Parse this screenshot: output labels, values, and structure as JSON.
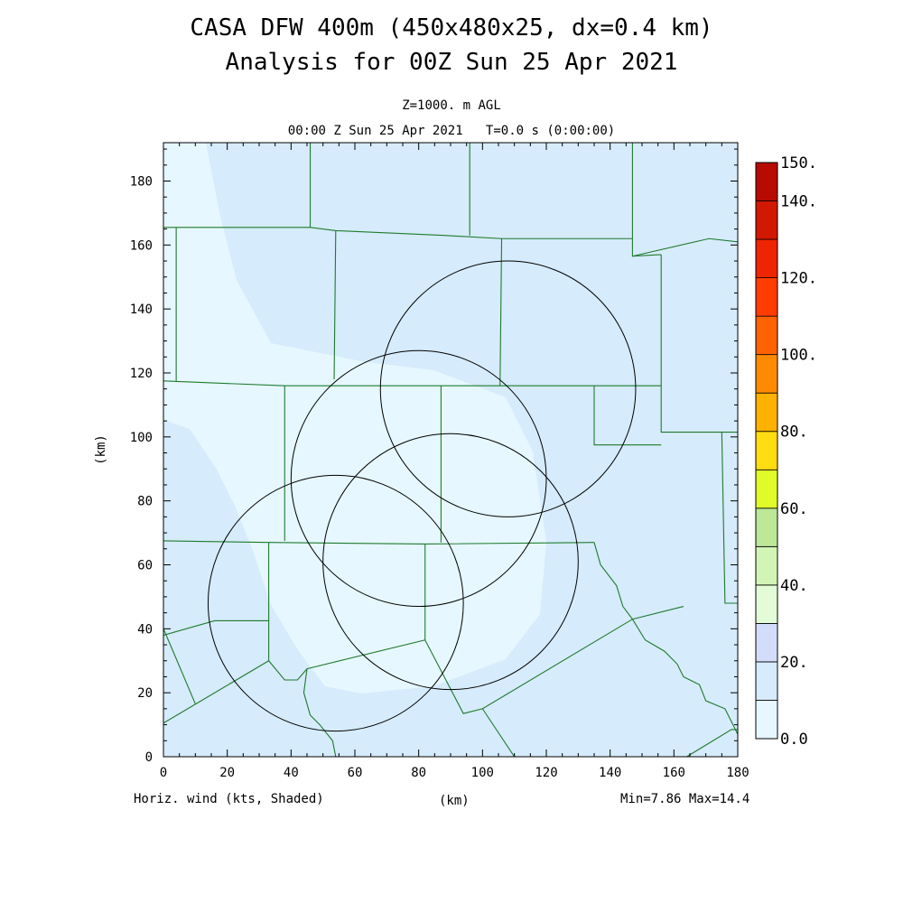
{
  "header": {
    "title1": "CASA DFW 400m (450x480x25, dx=0.4 km)",
    "title2": "Analysis for 00Z Sun 25 Apr 2021",
    "level": "Z=1000. m AGL",
    "time": "00:00 Z Sun 25 Apr 2021   T=0.0 s (0:00:00)"
  },
  "footer": {
    "variable": "Horiz. wind (kts, Shaded)",
    "xunit": "(km)",
    "minmax": "Min=7.86 Max=14.4"
  },
  "chart_data": {
    "type": "heatmap",
    "title": "CASA DFW 400m (450x480x25, dx=0.4 km)",
    "subtitle": "Analysis for 00Z Sun 25 Apr 2021",
    "xlabel": "(km)",
    "ylabel": "(km)",
    "xlim": [
      0,
      180
    ],
    "ylim": [
      0,
      192
    ],
    "xticks": [
      0,
      20,
      40,
      60,
      80,
      100,
      120,
      140,
      160,
      180
    ],
    "yticks": [
      0,
      20,
      40,
      60,
      80,
      100,
      120,
      140,
      160,
      180
    ],
    "variable": "Horiz. wind (kts, Shaded)",
    "field_min": 7.86,
    "field_max": 14.4,
    "colorbar": {
      "levels": [
        0,
        10,
        20,
        30,
        40,
        50,
        60,
        70,
        80,
        90,
        100,
        110,
        120,
        130,
        140,
        150
      ],
      "labels": [
        "0.0",
        "20.",
        "40.",
        "60.",
        "80.",
        "100.",
        "120.",
        "140.",
        "150."
      ],
      "label_values": [
        0,
        20,
        40,
        60,
        80,
        100,
        120,
        140,
        150
      ],
      "colors": [
        "#e6f7ff",
        "#d6ebfb",
        "#d3dcf8",
        "#e3fbd7",
        "#d2f5b6",
        "#bce898",
        "#e1fb2a",
        "#ffdd10",
        "#ffb100",
        "#ff8a00",
        "#ff6200",
        "#ff3d00",
        "#ef2400",
        "#d21800",
        "#b70a00"
      ]
    },
    "radar_rings": [
      {
        "center": [
          54,
          48
        ],
        "radius_km": 40
      },
      {
        "center": [
          80,
          87
        ],
        "radius_km": 40
      },
      {
        "center": [
          90,
          61
        ],
        "radius_km": 40
      },
      {
        "center": [
          108,
          115
        ],
        "radius_km": 40
      }
    ],
    "county_lines": [
      [
        [
          0,
          165.5
        ],
        [
          5,
          165.5
        ],
        [
          46,
          165.5
        ],
        [
          54,
          164.5
        ],
        [
          88,
          163
        ],
        [
          106,
          162
        ],
        [
          147,
          162
        ]
      ],
      [
        [
          4,
          165.5
        ],
        [
          4,
          117.5
        ]
      ],
      [
        [
          46,
          192
        ],
        [
          46,
          165.5
        ]
      ],
      [
        [
          54,
          164.5
        ],
        [
          53.5,
          118
        ]
      ],
      [
        [
          96,
          192
        ],
        [
          96,
          163
        ]
      ],
      [
        [
          106,
          162
        ],
        [
          105.5,
          116
        ]
      ],
      [
        [
          147,
          192
        ],
        [
          147,
          156.5
        ],
        [
          156,
          157
        ]
      ],
      [
        [
          147,
          156.5
        ],
        [
          171,
          162
        ],
        [
          180,
          161
        ]
      ],
      [
        [
          156,
          157
        ],
        [
          156,
          116
        ]
      ],
      [
        [
          0,
          117.5
        ],
        [
          38,
          116
        ],
        [
          88,
          116
        ],
        [
          156,
          116
        ]
      ],
      [
        [
          38,
          116
        ],
        [
          38,
          67.5
        ]
      ],
      [
        [
          87,
          116
        ],
        [
          87,
          67
        ]
      ],
      [
        [
          135,
          116
        ],
        [
          135,
          97.5
        ],
        [
          156,
          97.5
        ]
      ],
      [
        [
          156,
          116
        ],
        [
          156,
          101.5
        ],
        [
          175,
          101.5
        ],
        [
          180,
          101.5
        ]
      ],
      [
        [
          175,
          101.5
        ],
        [
          176,
          48
        ],
        [
          180,
          48
        ]
      ],
      [
        [
          0,
          67.5
        ],
        [
          33,
          67
        ],
        [
          82,
          66.5
        ],
        [
          135,
          67
        ]
      ],
      [
        [
          33,
          67
        ],
        [
          33,
          30
        ]
      ],
      [
        [
          82,
          66.5
        ],
        [
          82,
          36.5
        ]
      ],
      [
        [
          0,
          38
        ],
        [
          16,
          42.5
        ],
        [
          33,
          42.5
        ]
      ],
      [
        [
          0,
          40
        ],
        [
          3,
          33
        ],
        [
          10,
          16.5
        ]
      ],
      [
        [
          0,
          10.5
        ],
        [
          33,
          30
        ],
        [
          38,
          24
        ],
        [
          42,
          24
        ],
        [
          45,
          27.5
        ],
        [
          82,
          36.5
        ],
        [
          94,
          13.5
        ],
        [
          100,
          15
        ],
        [
          147,
          43
        ],
        [
          163,
          47
        ]
      ],
      [
        [
          135,
          67
        ],
        [
          137,
          60
        ],
        [
          142,
          53.5
        ],
        [
          144,
          47
        ],
        [
          147,
          43
        ],
        [
          151,
          36.5
        ],
        [
          157,
          33
        ],
        [
          161,
          29
        ],
        [
          163,
          25
        ],
        [
          168,
          22.5
        ],
        [
          170,
          17.5
        ],
        [
          176,
          15
        ],
        [
          178,
          11
        ],
        [
          180,
          7
        ]
      ],
      [
        [
          100,
          15
        ],
        [
          110,
          0
        ]
      ],
      [
        [
          45,
          27.5
        ],
        [
          44,
          20
        ],
        [
          46,
          13
        ],
        [
          49,
          10
        ],
        [
          53,
          5
        ],
        [
          54,
          0
        ]
      ],
      [
        [
          164,
          0
        ],
        [
          178,
          8.5
        ],
        [
          180,
          8.5
        ]
      ]
    ]
  }
}
